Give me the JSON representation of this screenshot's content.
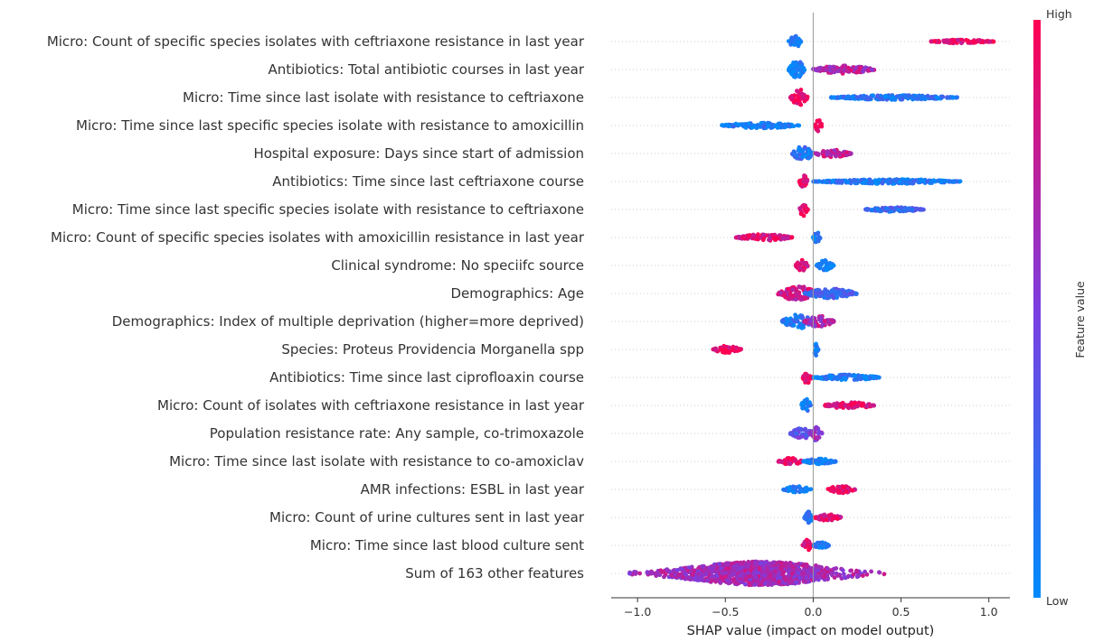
{
  "chart_data": {
    "type": "scatter",
    "subtype": "shap-beeswarm",
    "xlabel": "SHAP value (impact on model output)",
    "ylabel": "",
    "xlim": [
      -1.15,
      1.12
    ],
    "xticks": [
      -1.0,
      -0.5,
      0.0,
      0.5,
      1.0
    ],
    "xtick_labels": [
      "−1.0",
      "−0.5",
      "0.0",
      "0.5",
      "1.0"
    ],
    "colorbar": {
      "title": "Feature value",
      "high_label": "High",
      "low_label": "Low",
      "low_color": "#008bfb",
      "high_color": "#ff0051"
    },
    "features": [
      {
        "name": "Micro: Count of specific species isolates with ceftriaxone resistance in last year",
        "clusters": [
          [
            -0.14,
            -0.07,
            0.1,
            0.15
          ],
          [
            0.67,
            1.03,
            0.92,
            0.04
          ]
        ]
      },
      {
        "name": "Antibiotics: Total antibiotic courses in last year",
        "clusters": [
          [
            -0.14,
            -0.05,
            0.08,
            0.22
          ],
          [
            0.0,
            0.35,
            0.7,
            0.09
          ]
        ]
      },
      {
        "name": "Micro: Time since last isolate with resistance to ceftriaxone",
        "clusters": [
          [
            -0.13,
            -0.03,
            0.95,
            0.18
          ],
          [
            0.1,
            0.82,
            0.15,
            0.05
          ]
        ]
      },
      {
        "name": "Micro: Time since last specific species isolate with resistance to amoxicillin",
        "clusters": [
          [
            -0.52,
            -0.08,
            0.08,
            0.06
          ],
          [
            0.01,
            0.05,
            0.92,
            0.14
          ]
        ]
      },
      {
        "name": "Hospital exposure: Days since start of admission",
        "clusters": [
          [
            -0.12,
            0.0,
            0.15,
            0.16
          ],
          [
            0.0,
            0.22,
            0.75,
            0.08
          ]
        ]
      },
      {
        "name": "Antibiotics: Time since last ceftriaxone course",
        "clusters": [
          [
            -0.08,
            -0.03,
            0.92,
            0.14
          ],
          [
            0.0,
            0.84,
            0.1,
            0.05
          ]
        ]
      },
      {
        "name": "Micro: Time since last specific species isolate with resistance to ceftriaxone",
        "clusters": [
          [
            -0.08,
            -0.03,
            0.92,
            0.14
          ],
          [
            0.29,
            0.63,
            0.25,
            0.05
          ]
        ]
      },
      {
        "name": "Micro: Count of specific species isolates with amoxicillin resistance in last year",
        "clusters": [
          [
            -0.44,
            -0.12,
            0.85,
            0.07
          ],
          [
            0.0,
            0.04,
            0.08,
            0.14
          ]
        ]
      },
      {
        "name": "Clinical syndrome: No speciifc source",
        "clusters": [
          [
            -0.1,
            -0.03,
            0.9,
            0.13
          ],
          [
            0.02,
            0.12,
            0.1,
            0.12
          ]
        ]
      },
      {
        "name": "Demographics: Age",
        "clusters": [
          [
            -0.2,
            0.03,
            0.8,
            0.16
          ],
          [
            -0.05,
            0.25,
            0.25,
            0.11
          ]
        ]
      },
      {
        "name": "Demographics: Index of multiple deprivation (higher=more deprived)",
        "clusters": [
          [
            -0.18,
            0.0,
            0.15,
            0.16
          ],
          [
            -0.05,
            0.12,
            0.7,
            0.12
          ]
        ]
      },
      {
        "name": "Species: Proteus Providencia Morganella spp",
        "clusters": [
          [
            -0.57,
            -0.41,
            0.95,
            0.08
          ],
          [
            0.0,
            0.03,
            0.05,
            0.14
          ]
        ]
      },
      {
        "name": "Antibiotics: Time since last ciprofloaxin course",
        "clusters": [
          [
            -0.06,
            -0.01,
            0.92,
            0.14
          ],
          [
            0.0,
            0.38,
            0.1,
            0.06
          ]
        ]
      },
      {
        "name": "Micro: Count of  isolates with ceftriaxone resistance in last year",
        "clusters": [
          [
            -0.07,
            -0.01,
            0.12,
            0.14
          ],
          [
            0.06,
            0.35,
            0.88,
            0.07
          ]
        ]
      },
      {
        "name": "Population resistance rate: Any sample, co-trimoxazole",
        "clusters": [
          [
            -0.13,
            0.0,
            0.4,
            0.12
          ],
          [
            -0.02,
            0.05,
            0.6,
            0.16
          ]
        ]
      },
      {
        "name": "Micro: Time since last isolate with resistance to co-amoxiclav",
        "clusters": [
          [
            -0.2,
            -0.06,
            0.9,
            0.08
          ],
          [
            -0.06,
            0.13,
            0.12,
            0.06
          ]
        ]
      },
      {
        "name": "AMR infections: ESBL in last year",
        "clusters": [
          [
            -0.17,
            -0.01,
            0.1,
            0.07
          ],
          [
            0.08,
            0.24,
            0.92,
            0.08
          ]
        ]
      },
      {
        "name": "Micro: Count of urine cultures sent in last year",
        "clusters": [
          [
            -0.05,
            0.0,
            0.1,
            0.13
          ],
          [
            0.0,
            0.16,
            0.85,
            0.07
          ]
        ]
      },
      {
        "name": "Micro: Time since last blood culture sent",
        "clusters": [
          [
            -0.06,
            -0.01,
            0.92,
            0.13
          ],
          [
            0.0,
            0.09,
            0.12,
            0.07
          ]
        ]
      },
      {
        "name": "Sum of 163 other features",
        "clusters": [
          [
            -1.05,
            0.45,
            0.65,
            0.3
          ]
        ]
      }
    ]
  }
}
